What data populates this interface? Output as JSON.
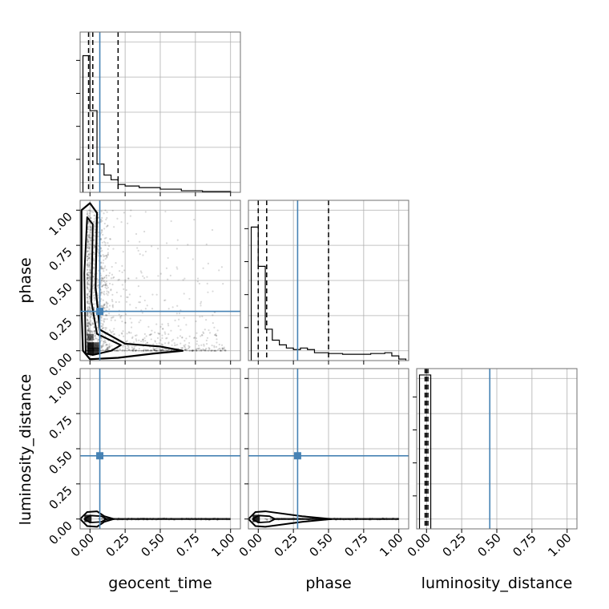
{
  "chart_data": {
    "type": "corner",
    "parameters": [
      "geocent_time",
      "phase",
      "luminosity_distance"
    ],
    "tick_values": [
      0.0,
      0.25,
      0.5,
      0.75,
      1.0
    ],
    "tick_labels": [
      "0.00",
      "0.25",
      "0.50",
      "0.75",
      "1.00"
    ],
    "axis_range": [
      -0.07,
      1.07
    ],
    "grid": true,
    "truth_color": "#4682b4",
    "contour_color": "#000000",
    "truths": {
      "geocent_time": 0.07,
      "phase": 0.28,
      "luminosity_distance": 0.45
    },
    "quantiles": {
      "geocent_time": [
        -0.01,
        0.02,
        0.2
      ],
      "phase": [
        0.0,
        0.06,
        0.5
      ],
      "luminosity_distance": [
        -0.01,
        0.0,
        0.01
      ]
    },
    "histograms": {
      "geocent_time": {
        "edges": [
          -0.05,
          0.0,
          0.05,
          0.1,
          0.15,
          0.2,
          0.25,
          0.35,
          0.5,
          0.65,
          0.8,
          1.0
        ],
        "counts": [
          0.87,
          0.52,
          0.18,
          0.11,
          0.08,
          0.05,
          0.04,
          0.03,
          0.02,
          0.01,
          0.005
        ]
      },
      "phase": {
        "edges": [
          -0.05,
          0.0,
          0.05,
          0.1,
          0.15,
          0.2,
          0.25,
          0.3,
          0.35,
          0.4,
          0.5,
          0.6,
          0.7,
          0.8,
          0.9,
          0.95,
          1.0,
          1.05
        ],
        "counts": [
          0.85,
          0.6,
          0.2,
          0.13,
          0.1,
          0.08,
          0.07,
          0.08,
          0.07,
          0.05,
          0.045,
          0.04,
          0.04,
          0.045,
          0.05,
          0.03,
          0.01
        ]
      },
      "luminosity_distance": {
        "edges": [
          -0.05,
          0.0,
          0.03
        ],
        "counts": [
          0.98,
          0.98
        ]
      }
    },
    "panels": [
      {
        "row": 1,
        "col": 0,
        "x": "geocent_time",
        "y": "phase"
      },
      {
        "row": 2,
        "col": 0,
        "x": "geocent_time",
        "y": "luminosity_distance"
      },
      {
        "row": 2,
        "col": 1,
        "x": "phase",
        "y": "luminosity_distance"
      }
    ]
  }
}
